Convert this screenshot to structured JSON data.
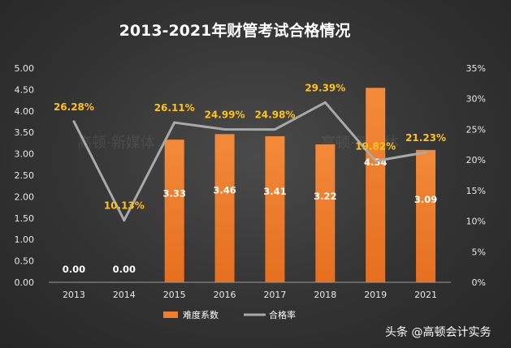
{
  "chart_data": {
    "type": "bar+line",
    "title": "2013-2021年财管考试合格情况",
    "categories": [
      "2013",
      "2014",
      "2015",
      "2016",
      "2017",
      "2018",
      "2019",
      "2021"
    ],
    "series": [
      {
        "name": "难度系数",
        "type": "bar",
        "axis": "left",
        "values": [
          0.0,
          0.0,
          3.33,
          3.46,
          3.41,
          3.22,
          4.54,
          3.09
        ],
        "labels": [
          "0.00",
          "0.00",
          "3.33",
          "3.46",
          "3.41",
          "3.22",
          "4.54",
          "3.09"
        ]
      },
      {
        "name": "合格率",
        "type": "line",
        "axis": "right",
        "values": [
          26.28,
          10.13,
          26.11,
          24.99,
          24.98,
          29.39,
          19.82,
          21.23
        ],
        "labels": [
          "26.28%",
          "10.13%",
          "26.11%",
          "24.99%",
          "24.98%",
          "29.39%",
          "19.82%",
          "21.23%"
        ]
      }
    ],
    "left_axis": {
      "ylim": [
        0,
        5
      ],
      "ticks": [
        "0.00",
        "0.50",
        "1.00",
        "1.50",
        "2.00",
        "2.50",
        "3.00",
        "3.50",
        "4.00",
        "4.50",
        "5.00"
      ]
    },
    "right_axis": {
      "ylim": [
        0,
        35
      ],
      "ticks": [
        "0%",
        "5%",
        "10%",
        "15%",
        "20%",
        "25%",
        "30%",
        "35%"
      ]
    },
    "legend": {
      "placement": "bottom",
      "entries": [
        "难度系数",
        "合格率"
      ]
    },
    "grid": false,
    "colors": {
      "bar": "#f07f2d",
      "line": "#a9a9a9",
      "rate_label": "#ffc21c",
      "bar_label": "#ffffff"
    }
  },
  "watermark": {
    "text": "高顿·新媒体"
  },
  "footer": {
    "source": "头条 @高顿会计实务"
  }
}
